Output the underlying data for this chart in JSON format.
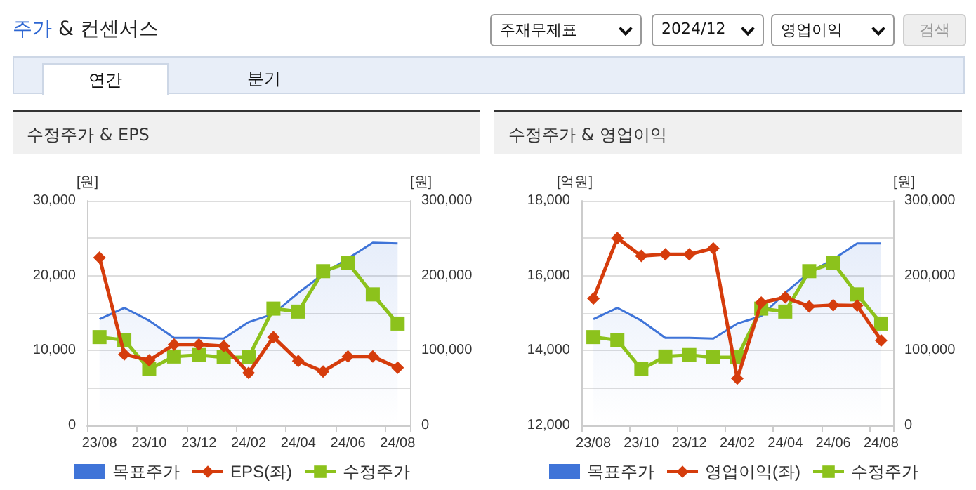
{
  "chart_data": [
    {
      "type": "other",
      "title": "주가 & 컨센서스",
      "annotations": [
        "주재무제표",
        "2024/12",
        "영업이익",
        "검색",
        "연간",
        "분기"
      ]
    },
    {
      "type": "line",
      "title": "수정주가 & EPS",
      "ylabel": "[원]",
      "y2label": "[원]",
      "categories": [
        "23/08",
        null,
        "23/10",
        null,
        "23/12",
        null,
        "24/02",
        null,
        "24/04",
        null,
        "24/06",
        null,
        "24/08"
      ],
      "ylim": [
        0,
        30000
      ],
      "yticks": [
        {
          "value": 0,
          "label": "0"
        },
        {
          "value": 10000,
          "label": "10,000"
        },
        {
          "value": 20000,
          "label": "20,000"
        },
        {
          "value": 30000,
          "label": "30,000"
        }
      ],
      "y2lim": [
        0,
        300000
      ],
      "y2ticks": [
        {
          "value": 0,
          "label": "0"
        },
        {
          "value": 100000,
          "label": "100,000"
        },
        {
          "value": 200000,
          "label": "200,000"
        },
        {
          "value": 300000,
          "label": "300,000"
        }
      ],
      "grid": "y",
      "legend": "bottom",
      "series": [
        {
          "name": "목표주가",
          "type": "area",
          "axis": "y2",
          "marker": "none",
          "color": "#3f74d8",
          "values": [
            142000,
            157000,
            140000,
            117000,
            117000,
            116000,
            138000,
            149000,
            177000,
            202000,
            223000,
            244000,
            243000
          ]
        },
        {
          "name": "EPS(좌)",
          "type": "line",
          "marker": "diamond",
          "color": "#d53c0c",
          "values": [
            22400,
            9500,
            8700,
            10800,
            10800,
            10600,
            7000,
            11800,
            8600,
            7200,
            9200,
            9200,
            7700
          ]
        },
        {
          "name": "수정주가",
          "type": "line",
          "axis": "y2",
          "marker": "square",
          "color": "#8cc21c",
          "values": [
            118000,
            114000,
            75000,
            92000,
            94000,
            91000,
            91000,
            156000,
            152000,
            206000,
            217000,
            175000,
            136000
          ]
        }
      ]
    },
    {
      "type": "line",
      "title": "수정주가 & 영업이익",
      "ylabel": "[억원]",
      "y2label": "[원]",
      "categories": [
        "23/08",
        null,
        "23/10",
        null,
        "23/12",
        null,
        "24/02",
        null,
        "24/04",
        null,
        "24/06",
        null,
        "24/08"
      ],
      "ylim": [
        12000,
        18000
      ],
      "yticks": [
        {
          "value": 12000,
          "label": "12,000"
        },
        {
          "value": 14000,
          "label": "14,000"
        },
        {
          "value": 16000,
          "label": "16,000"
        },
        {
          "value": 18000,
          "label": "18,000"
        }
      ],
      "y2lim": [
        0,
        300000
      ],
      "y2ticks": [
        {
          "value": 0,
          "label": "0"
        },
        {
          "value": 100000,
          "label": "100,000"
        },
        {
          "value": 200000,
          "label": "200,000"
        },
        {
          "value": 300000,
          "label": "300,000"
        }
      ],
      "grid": "y",
      "legend": "bottom",
      "series": [
        {
          "name": "목표주가",
          "type": "area",
          "axis": "y2",
          "marker": "none",
          "color": "#3f74d8",
          "values": [
            142000,
            157000,
            140000,
            117000,
            117000,
            116000,
            136000,
            146000,
            177000,
            204000,
            222000,
            243000,
            243000
          ]
        },
        {
          "name": "영업이익(좌)",
          "type": "line",
          "marker": "diamond",
          "color": "#d53c0c",
          "values": [
            15390,
            17000,
            16530,
            16570,
            16570,
            16730,
            13250,
            15280,
            15420,
            15180,
            15210,
            15200,
            14270
          ]
        },
        {
          "name": "수정주가",
          "type": "line",
          "axis": "y2",
          "marker": "square",
          "color": "#8cc21c",
          "values": [
            118000,
            114000,
            75000,
            92000,
            94000,
            91000,
            91000,
            156000,
            152000,
            206000,
            217000,
            175000,
            136000
          ]
        }
      ]
    }
  ]
}
